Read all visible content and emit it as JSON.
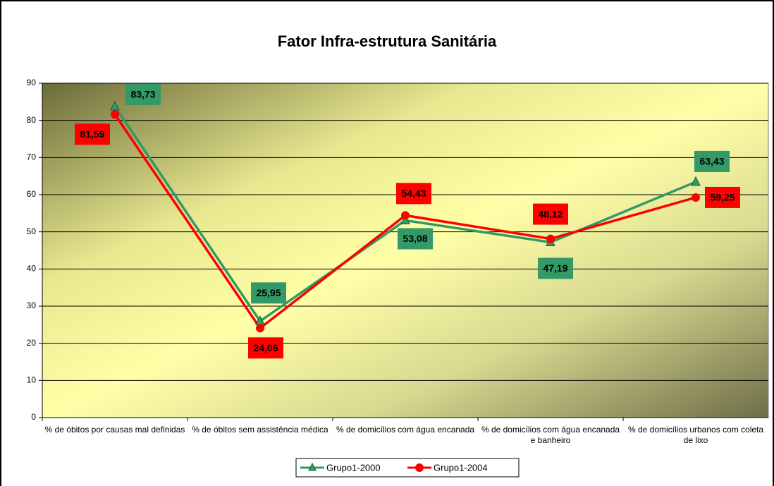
{
  "chart_data": {
    "type": "line",
    "title": "Fator Infra-estrutura Sanitária",
    "categories": [
      "% de óbitos por causas mal definidas",
      "% de óbitos sem assistência médica",
      "% de domicílios com água encanada",
      "%  de domicílios com água encanada e banheiro",
      "% de domicílios urbanos com coleta de lixo"
    ],
    "series": [
      {
        "name": "Grupo1-2000",
        "color": "#339966",
        "values": [
          83.73,
          25.95,
          53.08,
          47.19,
          63.43
        ],
        "value_labels": [
          "83,73",
          "25,95",
          "53,08",
          "47,19",
          "63,43"
        ]
      },
      {
        "name": "Grupo1-2004",
        "color": "#ff0000",
        "values": [
          81.59,
          24.06,
          54.43,
          48.12,
          59.25
        ],
        "value_labels": [
          "81,59",
          "24,06",
          "54,43",
          "48,12",
          "59,25"
        ]
      }
    ],
    "ylim": [
      0,
      90
    ],
    "yticks": [
      0,
      10,
      20,
      30,
      40,
      50,
      60,
      70,
      80,
      90
    ],
    "grid": true,
    "legend": "bottom"
  }
}
